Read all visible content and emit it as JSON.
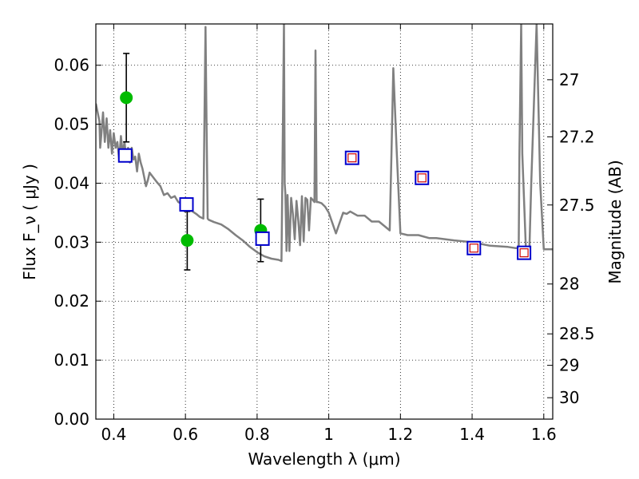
{
  "chart_data": {
    "type": "scatter",
    "xlabel": "Wavelength  λ (μm)",
    "ylabel": "Flux  F_ν  ( μJy )",
    "ylabel_right": "Magnitude (AB)",
    "xlim": [
      0.35,
      1.625
    ],
    "ylim": [
      0.0,
      0.067
    ],
    "x_ticks": [
      0.4,
      0.6,
      0.8,
      1.0,
      1.2,
      1.4,
      1.6
    ],
    "x_tick_labels": [
      "0.4",
      "0.6",
      "0.8",
      "1",
      "1.2",
      "1.4",
      "1.6"
    ],
    "y_ticks": [
      0.0,
      0.01,
      0.02,
      0.03,
      0.04,
      0.05,
      0.06
    ],
    "y_tick_labels": [
      "0.00",
      "0.01",
      "0.02",
      "0.03",
      "0.04",
      "0.05",
      "0.06"
    ],
    "right_ticks": [
      {
        "value": 27,
        "label": "27"
      },
      {
        "value": 27.2,
        "label": "27.2"
      },
      {
        "value": 27.5,
        "label": "27.5"
      },
      {
        "value": 28,
        "label": "28"
      },
      {
        "value": 28.5,
        "label": "28.5"
      },
      {
        "value": 29,
        "label": "29"
      },
      {
        "value": 30,
        "label": "30"
      }
    ],
    "grid": true,
    "colors": {
      "model": "#808080",
      "observed": "#00bb00",
      "model_box": "#0000cc",
      "model_inner": "#cc0000",
      "error": "#000000"
    },
    "series": [
      {
        "kind": "line",
        "x": [
          0.35,
          0.36,
          0.362,
          0.365,
          0.37,
          0.375,
          0.38,
          0.385,
          0.39,
          0.395,
          0.4,
          0.405,
          0.41,
          0.415,
          0.42,
          0.425,
          0.43,
          0.435,
          0.44,
          0.445,
          0.45,
          0.455,
          0.46,
          0.465,
          0.47,
          0.475,
          0.48,
          0.485,
          0.49,
          0.495,
          0.5,
          0.51,
          0.52,
          0.53,
          0.54,
          0.55,
          0.56,
          0.57,
          0.58,
          0.59,
          0.6,
          0.61,
          0.62,
          0.63,
          0.64,
          0.65,
          0.653,
          0.656,
          0.659,
          0.662,
          0.665,
          0.68,
          0.7,
          0.72,
          0.74,
          0.76,
          0.78,
          0.8,
          0.82,
          0.84,
          0.86,
          0.868,
          0.872,
          0.875,
          0.877,
          0.879,
          0.882,
          0.885,
          0.89,
          0.895,
          0.9,
          0.905,
          0.91,
          0.915,
          0.92,
          0.925,
          0.93,
          0.935,
          0.94,
          0.945,
          0.95,
          0.955,
          0.96,
          0.963,
          0.966,
          0.97,
          0.98,
          0.99,
          1.0,
          1.02,
          1.04,
          1.05,
          1.06,
          1.08,
          1.1,
          1.12,
          1.14,
          1.16,
          1.17,
          1.175,
          1.18,
          1.19,
          1.2,
          1.22,
          1.25,
          1.28,
          1.3,
          1.35,
          1.4,
          1.45,
          1.5,
          1.52,
          1.53,
          1.532,
          1.537,
          1.54,
          1.55,
          1.56,
          1.565,
          1.58,
          1.59,
          1.6,
          1.625
        ],
        "y": [
          0.0535,
          0.0505,
          0.046,
          0.048,
          0.052,
          0.047,
          0.051,
          0.046,
          0.049,
          0.045,
          0.0485,
          0.046,
          0.047,
          0.044,
          0.048,
          0.045,
          0.047,
          0.044,
          0.046,
          0.0435,
          0.046,
          0.044,
          0.0445,
          0.042,
          0.045,
          0.0435,
          0.0425,
          0.041,
          0.0395,
          0.0405,
          0.0418,
          0.041,
          0.0402,
          0.0395,
          0.038,
          0.0383,
          0.0375,
          0.0378,
          0.0368,
          0.0365,
          0.036,
          0.0355,
          0.0352,
          0.0348,
          0.0343,
          0.034,
          0.05,
          0.0665,
          0.05,
          0.034,
          0.0338,
          0.0334,
          0.033,
          0.0322,
          0.0312,
          0.0303,
          0.0292,
          0.0283,
          0.0276,
          0.0272,
          0.027,
          0.0268,
          0.05,
          0.067,
          0.04,
          0.0382,
          0.0285,
          0.038,
          0.0285,
          0.0375,
          0.0348,
          0.0305,
          0.037,
          0.0336,
          0.0295,
          0.0378,
          0.0302,
          0.0375,
          0.0372,
          0.032,
          0.0375,
          0.0372,
          0.0368,
          0.0625,
          0.0368,
          0.0368,
          0.0366,
          0.036,
          0.035,
          0.0315,
          0.035,
          0.0348,
          0.0352,
          0.0345,
          0.0345,
          0.0335,
          0.0335,
          0.0325,
          0.032,
          0.045,
          0.0595,
          0.045,
          0.0315,
          0.0312,
          0.0312,
          0.0307,
          0.0307,
          0.0303,
          0.03,
          0.0294,
          0.0292,
          0.029,
          0.029,
          0.045,
          0.067,
          0.045,
          0.0288,
          0.0288,
          0.04,
          0.067,
          0.04,
          0.0288,
          0.0288
        ]
      },
      {
        "kind": "points",
        "x": [
          0.435,
          0.605,
          0.81
        ],
        "y": [
          0.0545,
          0.0303,
          0.032
        ],
        "err_low": [
          0.047,
          0.0253,
          0.0267
        ],
        "err_high": [
          0.062,
          0.0352,
          0.0373
        ]
      },
      {
        "kind": "model_boxes",
        "x": [
          0.432,
          0.603,
          0.815
        ],
        "y": [
          0.0447,
          0.0364,
          0.0306
        ]
      },
      {
        "kind": "model_boxes_filled",
        "x": [
          1.065,
          1.26,
          1.405,
          1.545
        ],
        "y": [
          0.0443,
          0.0409,
          0.029,
          0.0282
        ]
      }
    ]
  }
}
